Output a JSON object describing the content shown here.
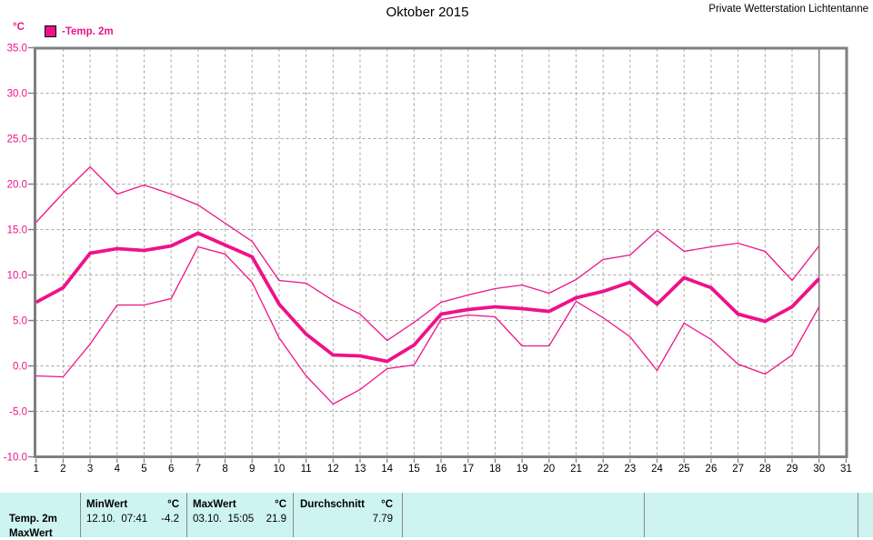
{
  "header": {
    "title": "Oktober 2015",
    "station": "Private Wetterstation Lichtentanne"
  },
  "chart_data": {
    "type": "line",
    "title": "Oktober 2015",
    "ylabel": "°C",
    "legend_label": "-Temp. 2m",
    "legend_position": "top-left",
    "grid": true,
    "ylim": [
      -10,
      35
    ],
    "ytick_step": 5,
    "yticks": [
      "35.0",
      "30.0",
      "25.0",
      "20.0",
      "15.0",
      "10.0",
      "5.0",
      "0.0",
      "-5.0",
      "-10.0"
    ],
    "xlim": [
      1,
      31
    ],
    "xticks": [
      "1",
      "2",
      "3",
      "4",
      "5",
      "6",
      "7",
      "8",
      "9",
      "10",
      "11",
      "12",
      "13",
      "14",
      "15",
      "16",
      "17",
      "18",
      "19",
      "20",
      "21",
      "22",
      "23",
      "24",
      "25",
      "26",
      "27",
      "28",
      "29",
      "30",
      "31"
    ],
    "x_days": [
      1,
      2,
      3,
      4,
      5,
      6,
      7,
      8,
      9,
      10,
      11,
      12,
      13,
      14,
      15,
      16,
      17,
      18,
      19,
      20,
      21,
      22,
      23,
      24,
      25,
      26,
      27,
      28,
      29,
      30
    ],
    "cursor_day": 30,
    "series": [
      {
        "name": "daily_max",
        "role": "daily-max",
        "thick": false,
        "values": [
          15.8,
          19.0,
          21.9,
          18.9,
          19.9,
          18.9,
          17.7,
          15.7,
          13.7,
          9.4,
          9.1,
          7.2,
          5.7,
          2.8,
          4.8,
          7.0,
          7.8,
          8.5,
          8.9,
          8.0,
          9.5,
          11.7,
          12.2,
          14.9,
          12.6,
          13.1,
          13.5,
          12.6,
          9.4,
          13.2
        ]
      },
      {
        "name": "daily_min",
        "role": "daily-min",
        "thick": false,
        "values": [
          -1.1,
          -1.2,
          2.4,
          6.7,
          6.7,
          7.4,
          13.1,
          12.3,
          9.2,
          3.1,
          -1.1,
          -4.2,
          -2.6,
          -0.3,
          0.1,
          5.1,
          5.6,
          5.4,
          2.2,
          2.2,
          7.1,
          5.3,
          3.2,
          -0.5,
          4.7,
          2.9,
          0.2,
          -0.9,
          1.2,
          6.5
        ]
      },
      {
        "name": "temp_2m_mean",
        "role": "mean",
        "thick": true,
        "values": [
          7.0,
          8.6,
          12.4,
          12.9,
          12.7,
          13.2,
          14.6,
          13.3,
          12.0,
          6.8,
          3.5,
          1.2,
          1.1,
          0.5,
          2.3,
          5.7,
          6.2,
          6.5,
          6.3,
          6.0,
          7.5,
          8.2,
          9.2,
          6.8,
          9.7,
          8.6,
          5.7,
          4.9,
          6.5,
          9.6
        ]
      }
    ],
    "colors": {
      "series": "#EE1289",
      "axis": "#7F7F7F",
      "grid": "#A6A6A6",
      "labels_y": "#EE1289",
      "labels_x": "#000000"
    }
  },
  "summary_table": {
    "background": "#CDF4F0",
    "row_label": "Temp. 2m",
    "next_row_label": "MaxWert",
    "columns": [
      {
        "header": "MinWert",
        "unit": "°C",
        "datetime": "12.10.  07:41",
        "value": "-4.2"
      },
      {
        "header": "MaxWert",
        "unit": "°C",
        "datetime": "03.10.  15:05",
        "value": "21.9"
      },
      {
        "header": "Durchschnitt",
        "unit": "°C",
        "datetime": "",
        "value": "7.79"
      }
    ]
  }
}
